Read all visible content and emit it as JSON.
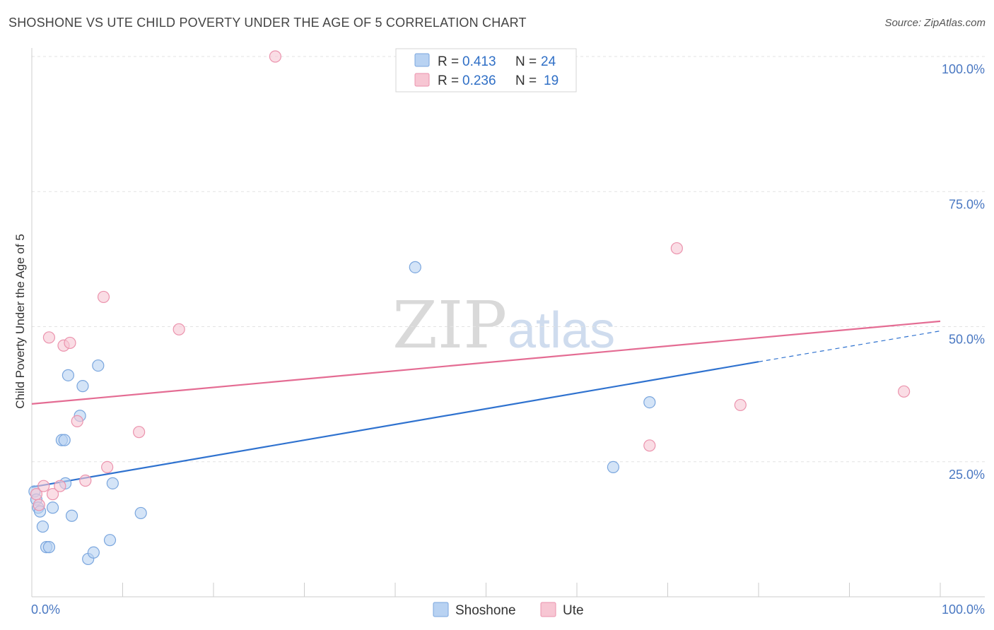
{
  "title": "SHOSHONE VS UTE CHILD POVERTY UNDER THE AGE OF 5 CORRELATION CHART",
  "source": "Source: ZipAtlas.com",
  "watermark": {
    "zip": "ZIP",
    "atlas": "atlas"
  },
  "chart_data": {
    "type": "scatter",
    "ylabel": "Child Poverty Under the Age of 5",
    "xlim": [
      0,
      100
    ],
    "ylim": [
      0,
      100
    ],
    "x_tick_labels": {
      "left": "0.0%",
      "right": "100.0%"
    },
    "y_ticks": [
      {
        "value": 100,
        "label": "100.0%"
      },
      {
        "value": 75,
        "label": "75.0%"
      },
      {
        "value": 50,
        "label": "50.0%"
      },
      {
        "value": 25,
        "label": "25.0%"
      }
    ],
    "colors": {
      "shoshone_fill": "#b8d2f2",
      "shoshone_stroke": "#7aa6de",
      "shoshone_line": "#2f72cf",
      "ute_fill": "#f7c6d3",
      "ute_stroke": "#eb93ad",
      "ute_line": "#e46c93"
    },
    "series": [
      {
        "name": "Shoshone",
        "R": "0.413",
        "N": "24",
        "points": [
          [
            0.3,
            19.5
          ],
          [
            0.5,
            18.0
          ],
          [
            0.7,
            16.5
          ],
          [
            0.9,
            15.8
          ],
          [
            1.2,
            13.0
          ],
          [
            1.6,
            9.2
          ],
          [
            1.9,
            9.2
          ],
          [
            2.3,
            16.5
          ],
          [
            3.3,
            29.0
          ],
          [
            3.6,
            29.0
          ],
          [
            3.7,
            21.0
          ],
          [
            4.0,
            41.0
          ],
          [
            4.4,
            15.0
          ],
          [
            5.3,
            33.5
          ],
          [
            5.6,
            39.0
          ],
          [
            6.2,
            7.0
          ],
          [
            6.8,
            8.2
          ],
          [
            7.3,
            42.8
          ],
          [
            8.6,
            10.5
          ],
          [
            8.9,
            21.0
          ],
          [
            12.0,
            15.5
          ],
          [
            42.2,
            61.0
          ],
          [
            64.0,
            24.0
          ],
          [
            68.0,
            36.0
          ]
        ],
        "trend": {
          "x0": 0,
          "y0": 20.3,
          "x1": 80,
          "y1": 43.5,
          "dash_to_x": 100,
          "dash_to_y": 49.2
        }
      },
      {
        "name": "Ute",
        "R": "0.236",
        "N": "19",
        "points": [
          [
            0.5,
            19.0
          ],
          [
            0.8,
            17.0
          ],
          [
            1.3,
            20.5
          ],
          [
            1.9,
            48.0
          ],
          [
            2.3,
            19.0
          ],
          [
            3.1,
            20.5
          ],
          [
            3.5,
            46.5
          ],
          [
            4.2,
            47.0
          ],
          [
            5.0,
            32.5
          ],
          [
            5.9,
            21.5
          ],
          [
            7.9,
            55.5
          ],
          [
            8.3,
            24.0
          ],
          [
            11.8,
            30.5
          ],
          [
            16.2,
            49.5
          ],
          [
            26.8,
            100.0
          ],
          [
            68.0,
            28.0
          ],
          [
            71.0,
            64.5
          ],
          [
            78.0,
            35.5
          ],
          [
            96.0,
            38.0
          ]
        ],
        "trend": {
          "x0": 0,
          "y0": 35.7,
          "x1": 100,
          "y1": 51.0
        }
      }
    ]
  }
}
